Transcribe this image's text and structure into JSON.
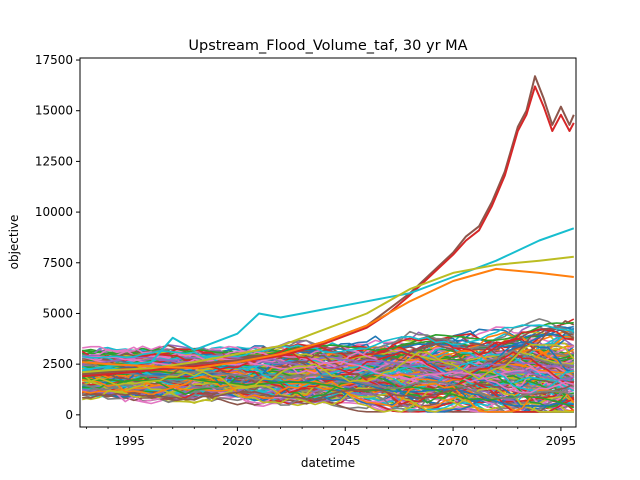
{
  "chart_data": {
    "type": "line",
    "title": "Upstream_Flood_Volume_taf, 30 yr MA",
    "xlabel": "datetime",
    "ylabel": "objective",
    "xlim": [
      1983.5,
      2098.5
    ],
    "ylim": [
      -600,
      17600
    ],
    "x_ticks": [
      1995,
      2020,
      2045,
      2070,
      2095
    ],
    "y_ticks": [
      0,
      2500,
      5000,
      7500,
      10000,
      12500,
      15000,
      17500
    ],
    "x_tick_labels": [
      "1995",
      "2020",
      "2045",
      "2070",
      "2095"
    ],
    "y_tick_labels": [
      "0",
      "2500",
      "5000",
      "7500",
      "10000",
      "12500",
      "15000",
      "17500"
    ],
    "grid": false,
    "legend": "none",
    "series_count_note_hidden": "",
    "highlight_series": [
      {
        "color": "#8c564b",
        "x": [
          1984,
          1990,
          2000,
          2010,
          2020,
          2030,
          2040,
          2050,
          2055,
          2060,
          2065,
          2070,
          2073,
          2076,
          2079,
          2082,
          2085,
          2087,
          2089,
          2091,
          2093,
          2095,
          2097,
          2098
        ],
        "values": [
          2000,
          2100,
          2300,
          2500,
          2700,
          3000,
          3600,
          4400,
          5200,
          6000,
          7000,
          8000,
          8800,
          9300,
          10500,
          12000,
          14200,
          15000,
          16700,
          15600,
          14300,
          15200,
          14300,
          14800
        ]
      },
      {
        "color": "#d62728",
        "x": [
          1984,
          1990,
          2000,
          2010,
          2020,
          2030,
          2040,
          2050,
          2055,
          2060,
          2065,
          2070,
          2073,
          2076,
          2079,
          2082,
          2085,
          2087,
          2089,
          2091,
          2093,
          2095,
          2097,
          2098
        ],
        "values": [
          1900,
          2000,
          2200,
          2400,
          2600,
          2900,
          3500,
          4300,
          5000,
          5900,
          6900,
          7900,
          8600,
          9100,
          10300,
          11800,
          14000,
          14800,
          16200,
          15200,
          14000,
          14800,
          14000,
          14400
        ]
      },
      {
        "color": "#17becf",
        "x": [
          1984,
          1990,
          2000,
          2005,
          2010,
          2015,
          2020,
          2025,
          2030,
          2040,
          2050,
          2060,
          2070,
          2080,
          2090,
          2098
        ],
        "values": [
          2200,
          2400,
          2600,
          3800,
          3200,
          3600,
          4000,
          5000,
          4800,
          5200,
          5600,
          6000,
          6800,
          7600,
          8600,
          9200
        ]
      },
      {
        "color": "#bcbd22",
        "x": [
          1984,
          1990,
          2000,
          2010,
          2020,
          2030,
          2040,
          2050,
          2060,
          2070,
          2080,
          2090,
          2098
        ],
        "values": [
          2100,
          2200,
          2300,
          2600,
          3000,
          3400,
          4200,
          5000,
          6200,
          7000,
          7400,
          7600,
          7800
        ]
      },
      {
        "color": "#ff7f0e",
        "x": [
          1984,
          1990,
          2000,
          2010,
          2020,
          2030,
          2040,
          2050,
          2060,
          2070,
          2080,
          2090,
          2098
        ],
        "values": [
          2600,
          2500,
          2400,
          2300,
          2600,
          3000,
          3600,
          4400,
          5600,
          6600,
          7200,
          7000,
          6800
        ]
      }
    ]
  }
}
